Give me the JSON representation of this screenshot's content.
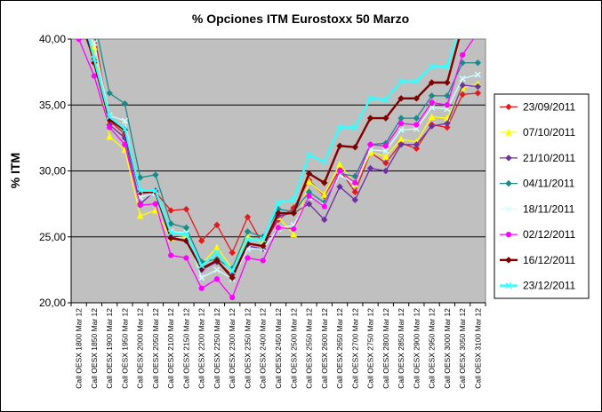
{
  "chart_data": {
    "type": "line",
    "title": "% Opciones ITM Eurostoxx 50 Marzo",
    "xlabel": "",
    "ylabel": "% ITM",
    "ylim": [
      20,
      40
    ],
    "yticks": [
      "20,00",
      "25,00",
      "30,00",
      "35,00",
      "40,00"
    ],
    "grid": true,
    "legend_position": "right",
    "colors": {
      "plot_background": "#c0c0c0",
      "chart_border": "#000000"
    },
    "categories": [
      "Call OESX 1800 Mar 12",
      "Call OESX 1850 Mar 12",
      "Call OESX 1900 Mar 12",
      "Call OESX 1950 Mar 12",
      "Call OESX 2000 Mar 12",
      "Call OESX 2050 Mar 12",
      "Call OESX 2100 Mar 12",
      "Call OESX 2150 Mar 12",
      "Call OESX 2200 Mar 12",
      "Call OESX 2250 Mar 12",
      "Call OESX 2300 Mar 12",
      "Call OESX 2350 Mar 12",
      "Call OESX 2400 Mar 12",
      "Call OESX 2450 Mar 12",
      "Call OESX 2500 Mar 12",
      "Call OESX 2550 Mar 12",
      "Call OESX 2600 Mar 12",
      "Call OESX 2650 Mar 12",
      "Call OESX 2700 Mar 12",
      "Call OESX 2750 Mar 12",
      "Call OESX 2800 Mar 12",
      "Call OESX 2850 Mar 12",
      "Call OESX 2900 Mar 12",
      "Call OESX 2950 Mar 12",
      "Call OESX 3000 Mar 12",
      "Call OESX 3050 Mar 12",
      "Call OESX 3100 Mar 12"
    ],
    "series": [
      {
        "name": "23/09/2011",
        "color": "#e31a1c",
        "marker": "diamond",
        "values": [
          41.5,
          40.5,
          33.8,
          32.8,
          28.3,
          28.4,
          27.0,
          27.1,
          24.7,
          25.9,
          23.8,
          26.5,
          24.4,
          26.3,
          27.2,
          29.3,
          28.1,
          30.1,
          28.4,
          31.4,
          30.6,
          32.1,
          31.7,
          33.5,
          33.3,
          35.8,
          35.9
        ]
      },
      {
        "name": "07/10/2011",
        "color": "#ffff00",
        "marker": "triangle",
        "values": [
          41.0,
          39.4,
          32.6,
          31.6,
          26.6,
          27.0,
          24.9,
          25.0,
          22.9,
          24.2,
          22.6,
          25.0,
          24.6,
          26.5,
          25.2,
          29.2,
          28.2,
          30.5,
          29.0,
          31.4,
          31.1,
          32.4,
          32.2,
          34.1,
          34.0,
          36.3,
          36.6
        ]
      },
      {
        "name": "21/10/2011",
        "color": "#7030a0",
        "marker": "diamond",
        "values": [
          41.5,
          38.4,
          33.5,
          32.5,
          27.5,
          28.5,
          25.0,
          24.7,
          22.5,
          23.1,
          22.1,
          24.3,
          24.1,
          26.6,
          26.8,
          27.5,
          26.3,
          28.8,
          27.8,
          30.2,
          30.0,
          32.0,
          32.0,
          33.4,
          33.6,
          36.5,
          36.4
        ]
      },
      {
        "name": "04/11/2011",
        "color": "#1a8a8a",
        "marker": "diamond",
        "values": [
          42.5,
          41.5,
          35.9,
          35.1,
          29.5,
          29.7,
          26.0,
          25.7,
          23.1,
          23.3,
          22.6,
          25.4,
          25.0,
          27.1,
          26.9,
          28.4,
          27.6,
          29.8,
          29.6,
          32.0,
          32.1,
          34.0,
          34.0,
          35.7,
          35.7,
          38.2,
          38.2
        ]
      },
      {
        "name": "18/11/2011",
        "color": "#d0ffff",
        "marker": "cross",
        "values": [
          41.5,
          39.7,
          34.2,
          33.8,
          28.0,
          28.3,
          25.4,
          25.3,
          21.9,
          22.5,
          21.8,
          24.1,
          24.1,
          25.6,
          25.9,
          28.0,
          27.4,
          29.7,
          29.0,
          31.6,
          31.5,
          33.1,
          33.2,
          34.8,
          34.7,
          37.0,
          37.3
        ]
      },
      {
        "name": "02/12/2011",
        "color": "#ff00ff",
        "marker": "circle",
        "values": [
          40.0,
          37.2,
          33.3,
          32.0,
          27.4,
          27.5,
          23.6,
          23.4,
          21.1,
          21.8,
          20.4,
          23.4,
          23.2,
          25.7,
          25.6,
          28.1,
          27.3,
          30.0,
          29.1,
          32.0,
          31.9,
          33.6,
          33.5,
          35.2,
          35.0,
          38.8,
          40.5
        ]
      },
      {
        "name": "16/12/2011",
        "color": "#7f0000",
        "marker": "diamond",
        "values": [
          42.5,
          38.2,
          33.9,
          33.1,
          28.4,
          28.4,
          24.9,
          24.7,
          22.6,
          23.2,
          21.9,
          24.5,
          24.3,
          26.8,
          26.8,
          29.8,
          29.1,
          31.9,
          31.8,
          34.0,
          34.0,
          35.5,
          35.5,
          36.7,
          36.7,
          41.0,
          41.5
        ]
      },
      {
        "name": "23/12/2011",
        "color": "#33ffff",
        "marker": "cross",
        "values": [
          43.0,
          38.5,
          34.1,
          33.2,
          28.5,
          28.5,
          25.3,
          25.2,
          22.8,
          23.8,
          22.4,
          24.8,
          24.8,
          27.6,
          27.8,
          31.2,
          30.7,
          33.3,
          33.3,
          35.5,
          35.4,
          36.8,
          36.8,
          37.9,
          37.9,
          41.5,
          42.0
        ]
      }
    ]
  }
}
